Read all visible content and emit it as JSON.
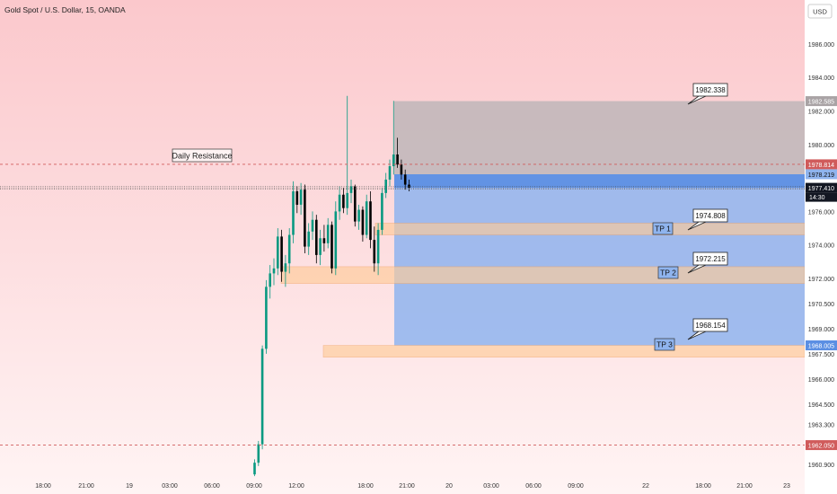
{
  "header": {
    "title": "Gold Spot / U.S. Dollar, 15, OANDA",
    "currency": "USD"
  },
  "chart_data": {
    "type": "candlestick",
    "title": "Gold Spot / U.S. Dollar, 15, OANDA",
    "ylim": [
      1960.2,
      1987.6
    ],
    "y_ticks": [
      "1986.000",
      "1984.000",
      "1982.000",
      "1980.000",
      "1976.000",
      "1974.000",
      "1972.000",
      "1970.500",
      "1969.000",
      "1967.500",
      "1966.000",
      "1964.500",
      "1963.300",
      "1960.900"
    ],
    "x_ticks": [
      "18:00",
      "21:00",
      "19",
      "03:00",
      "06:00",
      "09:00",
      "12:00",
      "18:00",
      "21:00",
      "20",
      "03:00",
      "06:00",
      "09:00",
      "22",
      "18:00",
      "21:00",
      "23"
    ],
    "candles_ohlc": [
      [
        1960.3,
        1961.2,
        1960.2,
        1961.0
      ],
      [
        1961.0,
        1962.3,
        1960.8,
        1962.1
      ],
      [
        1962.1,
        1968.0,
        1961.8,
        1967.8
      ],
      [
        1967.8,
        1971.9,
        1967.5,
        1971.5
      ],
      [
        1971.5,
        1972.8,
        1970.8,
        1972.3
      ],
      [
        1972.3,
        1973.2,
        1971.6,
        1972.6
      ],
      [
        1972.6,
        1975.0,
        1972.2,
        1974.5
      ],
      [
        1974.5,
        1974.9,
        1971.8,
        1972.4
      ],
      [
        1972.4,
        1973.4,
        1971.5,
        1972.9
      ],
      [
        1972.9,
        1975.0,
        1972.3,
        1974.6
      ],
      [
        1974.6,
        1977.8,
        1974.1,
        1977.2
      ],
      [
        1977.2,
        1977.5,
        1975.9,
        1976.4
      ],
      [
        1976.4,
        1977.7,
        1975.8,
        1977.3
      ],
      [
        1977.3,
        1977.6,
        1973.5,
        1973.9
      ],
      [
        1973.9,
        1975.3,
        1973.4,
        1974.8
      ],
      [
        1974.8,
        1976.0,
        1974.3,
        1975.5
      ],
      [
        1975.5,
        1975.8,
        1972.9,
        1973.4
      ],
      [
        1973.4,
        1974.9,
        1972.8,
        1974.4
      ],
      [
        1974.4,
        1975.2,
        1973.6,
        1974.1
      ],
      [
        1974.1,
        1975.6,
        1973.8,
        1975.2
      ],
      [
        1975.2,
        1975.4,
        1972.3,
        1972.6
      ],
      [
        1972.6,
        1976.6,
        1972.2,
        1976.0
      ],
      [
        1976.0,
        1977.5,
        1975.5,
        1977.0
      ],
      [
        1977.0,
        1977.4,
        1975.9,
        1976.2
      ],
      [
        1976.2,
        1982.9,
        1975.8,
        1977.1
      ],
      [
        1977.1,
        1977.9,
        1976.5,
        1977.5
      ],
      [
        1977.5,
        1977.6,
        1975.1,
        1975.4
      ],
      [
        1975.4,
        1976.4,
        1974.9,
        1976.1
      ],
      [
        1976.1,
        1976.3,
        1974.2,
        1974.6
      ],
      [
        1974.6,
        1977.0,
        1974.4,
        1976.6
      ],
      [
        1976.6,
        1977.2,
        1973.8,
        1974.3
      ],
      [
        1974.3,
        1975.1,
        1972.4,
        1972.9
      ],
      [
        1972.9,
        1975.3,
        1972.2,
        1974.9
      ],
      [
        1974.9,
        1977.4,
        1974.6,
        1977.1
      ],
      [
        1977.1,
        1978.3,
        1976.8,
        1977.9
      ],
      [
        1977.9,
        1979.1,
        1977.5,
        1978.7
      ],
      [
        1978.7,
        1982.6,
        1978.2,
        1979.4
      ],
      [
        1979.4,
        1980.4,
        1978.6,
        1978.8
      ],
      [
        1978.8,
        1979.1,
        1977.9,
        1978.2
      ],
      [
        1978.2,
        1978.5,
        1977.3,
        1977.6
      ],
      [
        1977.6,
        1977.9,
        1977.2,
        1977.41
      ]
    ],
    "levels": {
      "daily_resistance": 1978.814,
      "current_price": 1977.41,
      "low_line": 1962.05
    },
    "price_labels": [
      "1982.585",
      "1978.814",
      "1978.219",
      "1977.410",
      "14:30",
      "1968.005",
      "1962.050"
    ],
    "annotations": [
      {
        "text": "Daily Resistance"
      },
      {
        "text": "TP 1",
        "price": "1974.808"
      },
      {
        "text": "TP 2",
        "price": "1972.215"
      },
      {
        "text": "TP 3",
        "price": "1968.154"
      },
      {
        "text": "1982.338"
      }
    ],
    "zones": {
      "stop": [
        1978.219,
        1982.585
      ],
      "target": [
        1968.005,
        1978.219
      ],
      "tp_boxes": [
        [
          1974.6,
          1975.3
        ],
        [
          1971.7,
          1972.7
        ],
        [
          1967.3,
          1968.0
        ]
      ]
    },
    "colors": {
      "up": "#089981",
      "down": "#000000",
      "stop_zone": "#b9b4b6",
      "target_zone": "#8fb4ee",
      "tp_box": "#ffcc99",
      "resistance": "#d05b5b"
    }
  }
}
